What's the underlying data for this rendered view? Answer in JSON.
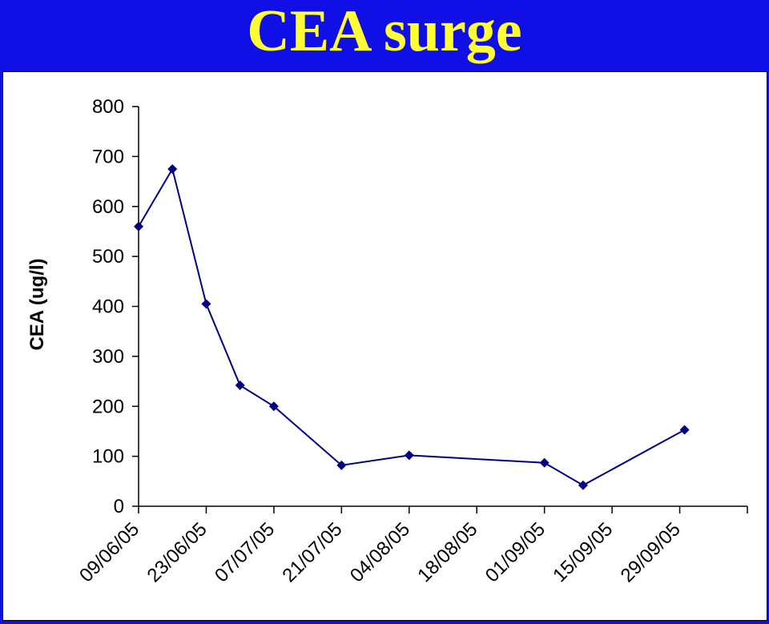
{
  "slide": {
    "title": "CEA surge"
  },
  "chart_data": {
    "type": "line",
    "title": "",
    "xlabel": "",
    "ylabel": "CEA (ug/l)",
    "ylim": [
      0,
      800
    ],
    "yticks": [
      0,
      100,
      200,
      300,
      400,
      500,
      600,
      700,
      800
    ],
    "x_range": [
      "09/06/05",
      "13/10/05"
    ],
    "xticks": [
      "09/06/05",
      "23/06/05",
      "07/07/05",
      "21/07/05",
      "04/08/05",
      "18/08/05",
      "01/09/05",
      "15/09/05",
      "29/09/05"
    ],
    "grid": false,
    "legend": "none",
    "series": [
      {
        "x": [
          "09/06/05",
          "16/06/05",
          "23/06/05",
          "30/06/05",
          "07/07/05",
          "21/07/05",
          "04/08/05",
          "01/09/05",
          "09/09/05",
          "30/09/05"
        ],
        "y": [
          560,
          675,
          405,
          242,
          200,
          82,
          102,
          87,
          42,
          153
        ],
        "color": "#000080",
        "marker": "diamond"
      }
    ]
  }
}
